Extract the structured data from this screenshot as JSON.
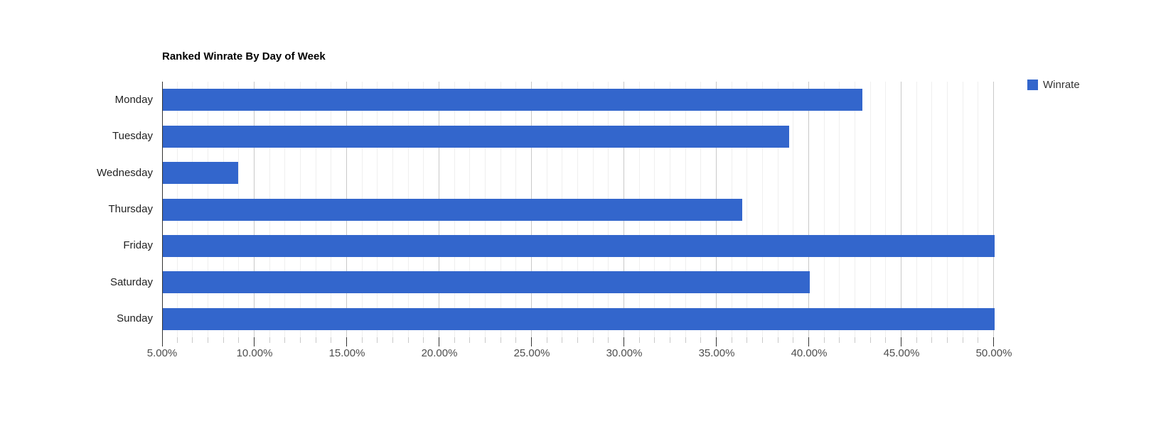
{
  "chart_data": {
    "type": "bar",
    "orientation": "horizontal",
    "title": "Ranked Winrate By Day of Week",
    "categories": [
      "Monday",
      "Tuesday",
      "Wednesday",
      "Thursday",
      "Friday",
      "Saturday",
      "Sunday"
    ],
    "series": [
      {
        "name": "Winrate",
        "color": "#3366cc",
        "values": [
          42.86,
          38.89,
          9.09,
          36.36,
          50.0,
          40.0,
          50.0
        ]
      }
    ],
    "xlabel": "",
    "ylabel": "",
    "xlim": [
      5,
      50
    ],
    "x_axis": {
      "min": 5,
      "max": 50,
      "major_step": 5,
      "minor_per_major": 6,
      "tick_labels": [
        "5.00%",
        "10.00%",
        "15.00%",
        "20.00%",
        "25.00%",
        "30.00%",
        "35.00%",
        "40.00%",
        "45.00%",
        "50.00%"
      ]
    },
    "grid": true,
    "legend_position": "right",
    "legend": {
      "entries": [
        {
          "label": "Winrate",
          "color": "#3366cc"
        }
      ]
    }
  },
  "colors": {
    "background": "#ffffff",
    "bar": "#3366cc",
    "grid_minor": "#efefef",
    "grid_major": "#c9c9c9",
    "axis_line": "#333333",
    "tick_minor": "#c9c9c9",
    "tick_major": "#333333",
    "x_label": "#4d4d4d",
    "y_label": "#222222",
    "title": "#000000",
    "legend_text": "#333333"
  }
}
